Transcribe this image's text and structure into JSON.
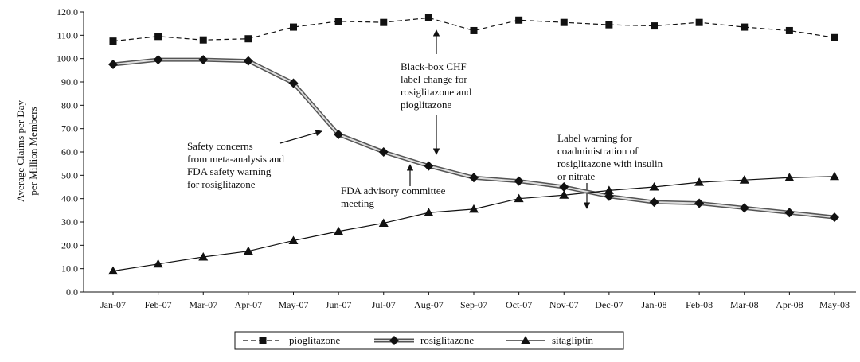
{
  "chart_data": {
    "type": "line",
    "y_label": [
      "Average Claims per Day",
      "per Million Members"
    ],
    "categories": [
      "Jan-07",
      "Feb-07",
      "Mar-07",
      "Apr-07",
      "May-07",
      "Jun-07",
      "Jul-07",
      "Aug-07",
      "Sep-07",
      "Oct-07",
      "Nov-07",
      "Dec-07",
      "Jan-08",
      "Feb-08",
      "Mar-08",
      "Apr-08",
      "May-08"
    ],
    "series": [
      {
        "name": "pioglitazone",
        "color": "#111111",
        "style": "dashed",
        "marker": "square",
        "values": [
          107.5,
          109.5,
          108,
          108.5,
          113.5,
          116,
          115.5,
          117.5,
          112,
          116.5,
          115.5,
          114.5,
          114,
          115.5,
          113.5,
          112,
          109
        ]
      },
      {
        "name": "rosiglitazone",
        "color": "#555555",
        "style": "double",
        "marker": "diamond",
        "values": [
          97.5,
          99.5,
          99.5,
          99,
          89.5,
          67.5,
          60,
          54,
          49,
          47.5,
          45,
          41,
          38.5,
          38,
          36,
          34,
          32
        ]
      },
      {
        "name": "sitagliptin",
        "color": "#111111",
        "style": "solid",
        "marker": "triangle",
        "values": [
          9,
          12,
          15,
          17.5,
          22,
          26,
          29.5,
          34,
          35.5,
          40,
          41.5,
          43.5,
          45,
          47,
          48,
          49,
          49.5
        ]
      }
    ],
    "ylim": [
      0,
      120
    ],
    "yticks": [
      {
        "value": 0,
        "label": "0.0"
      },
      {
        "value": 10,
        "label": "10.0"
      },
      {
        "value": 20,
        "label": "20.0"
      },
      {
        "value": 30,
        "label": "30.0"
      },
      {
        "value": 40,
        "label": "40.0"
      },
      {
        "value": 50,
        "label": "50.0"
      },
      {
        "value": 60,
        "label": "60.0"
      },
      {
        "value": 70,
        "label": "70.0"
      },
      {
        "value": 80,
        "label": "80.0"
      },
      {
        "value": 90,
        "label": "90.0"
      },
      {
        "value": 100,
        "label": "100.0"
      },
      {
        "value": 110,
        "label": "110.0"
      },
      {
        "value": 120,
        "label": "120.0"
      }
    ],
    "grid": false,
    "legend": "bottom",
    "annotations": [
      {
        "lines": [
          "Safety concerns",
          "from meta-analysis and",
          "FDA safety warning",
          "for rosiglitazone"
        ]
      },
      {
        "lines": [
          "FDA advisory committee",
          "meeting"
        ]
      },
      {
        "lines": [
          "Black-box CHF",
          "label change for",
          "rosiglitazone and",
          "pioglitazone"
        ]
      },
      {
        "lines": [
          "Label warning for",
          "coadministration of",
          "rosiglitazone with insulin",
          "or nitrate"
        ]
      }
    ]
  }
}
